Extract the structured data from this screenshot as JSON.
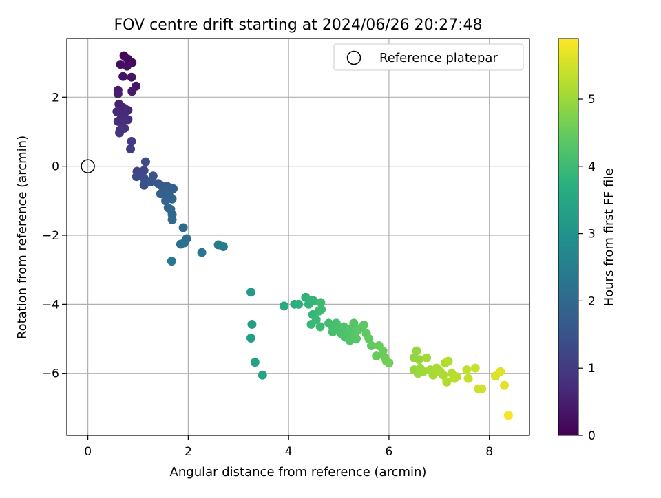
{
  "chart_data": {
    "type": "scatter",
    "title": "FOV centre drift starting at 2024/06/26 20:27:48",
    "xlabel": "Angular distance from reference (arcmin)",
    "ylabel": "Rotation from reference (arcmin)",
    "xlim": [
      -0.42,
      8.8
    ],
    "ylim": [
      -7.8,
      3.7
    ],
    "x_ticks": [
      0,
      2,
      4,
      6,
      8
    ],
    "y_ticks": [
      -6,
      -4,
      -2,
      0,
      2
    ],
    "x_tick_labels": [
      "0",
      "2",
      "4",
      "6",
      "8"
    ],
    "y_tick_labels": [
      "−6",
      "−4",
      "−2",
      "0",
      "2"
    ],
    "grid": true,
    "legend": {
      "position": "top-right",
      "entries": [
        "Reference platepar"
      ]
    },
    "reference_point": {
      "x": 0,
      "y": 0
    },
    "colorbar": {
      "label": "Hours from first FF file",
      "colormap": "viridis",
      "range": [
        0,
        5.9
      ],
      "ticks": [
        0,
        1,
        2,
        3,
        4,
        5
      ],
      "tick_labels": [
        "0",
        "1",
        "2",
        "3",
        "4",
        "5"
      ]
    },
    "points": [
      [
        0.72,
        3.2,
        0.05
      ],
      [
        0.8,
        3.1,
        0.1
      ],
      [
        0.88,
        3.0,
        0.15
      ],
      [
        0.65,
        2.95,
        0.2
      ],
      [
        0.78,
        2.9,
        0.25
      ],
      [
        0.7,
        2.6,
        0.3
      ],
      [
        0.87,
        2.58,
        0.32
      ],
      [
        0.96,
        2.32,
        0.35
      ],
      [
        0.88,
        2.17,
        0.4
      ],
      [
        0.6,
        2.2,
        0.45
      ],
      [
        0.6,
        2.1,
        0.5
      ],
      [
        0.62,
        1.8,
        0.55
      ],
      [
        0.7,
        1.7,
        0.6
      ],
      [
        0.75,
        1.65,
        0.62
      ],
      [
        0.8,
        1.62,
        0.65
      ],
      [
        0.58,
        1.58,
        0.68
      ],
      [
        0.66,
        1.5,
        0.7
      ],
      [
        0.72,
        1.45,
        0.72
      ],
      [
        0.8,
        1.35,
        0.75
      ],
      [
        0.6,
        1.3,
        0.78
      ],
      [
        0.68,
        1.25,
        0.8
      ],
      [
        0.73,
        1.1,
        0.85
      ],
      [
        0.64,
        1.05,
        0.88
      ],
      [
        0.63,
        0.97,
        0.9
      ],
      [
        0.87,
        0.72,
        1.0
      ],
      [
        0.85,
        0.5,
        1.05
      ],
      [
        0.98,
        -0.15,
        1.2
      ],
      [
        1.05,
        -0.2,
        1.25
      ],
      [
        1.12,
        -0.12,
        1.28
      ],
      [
        0.97,
        -0.3,
        1.3
      ],
      [
        1.15,
        0.13,
        1.35
      ],
      [
        1.12,
        -0.35,
        1.4
      ],
      [
        1.12,
        -0.55,
        1.45
      ],
      [
        1.3,
        -0.28,
        1.5
      ],
      [
        1.25,
        -0.45,
        1.55
      ],
      [
        1.4,
        -0.5,
        1.6
      ],
      [
        1.45,
        -0.55,
        1.65
      ],
      [
        1.52,
        -0.6,
        1.7
      ],
      [
        1.58,
        -0.58,
        1.72
      ],
      [
        1.63,
        -0.63,
        1.75
      ],
      [
        1.7,
        -0.65,
        1.78
      ],
      [
        1.45,
        -0.8,
        1.8
      ],
      [
        1.55,
        -0.78,
        1.82
      ],
      [
        1.62,
        -0.85,
        1.85
      ],
      [
        1.68,
        -0.95,
        1.88
      ],
      [
        1.55,
        -1.0,
        1.9
      ],
      [
        1.6,
        -1.2,
        1.92
      ],
      [
        1.65,
        -1.25,
        1.95
      ],
      [
        1.68,
        -1.4,
        1.98
      ],
      [
        1.68,
        -1.55,
        2.0
      ],
      [
        1.9,
        -1.78,
        2.05
      ],
      [
        1.97,
        -2.1,
        2.1
      ],
      [
        1.92,
        -2.22,
        2.15
      ],
      [
        1.85,
        -2.26,
        2.2
      ],
      [
        2.27,
        -2.5,
        2.3
      ],
      [
        1.67,
        -2.75,
        2.35
      ],
      [
        2.6,
        -2.28,
        2.4
      ],
      [
        2.7,
        -2.33,
        2.45
      ],
      [
        3.25,
        -3.65,
        3.2
      ],
      [
        3.27,
        -4.58,
        3.25
      ],
      [
        3.25,
        -4.98,
        3.3
      ],
      [
        3.33,
        -5.68,
        3.35
      ],
      [
        3.48,
        -6.05,
        3.4
      ],
      [
        3.91,
        -4.05,
        3.6
      ],
      [
        4.12,
        -4.0,
        3.7
      ],
      [
        4.2,
        -4.0,
        3.75
      ],
      [
        4.34,
        -3.8,
        3.8
      ],
      [
        4.4,
        -4.0,
        3.82
      ],
      [
        4.46,
        -3.88,
        3.85
      ],
      [
        4.5,
        -3.9,
        3.88
      ],
      [
        4.48,
        -4.3,
        3.9
      ],
      [
        4.45,
        -4.58,
        3.92
      ],
      [
        4.55,
        -4.45,
        3.95
      ],
      [
        4.6,
        -4.2,
        3.97
      ],
      [
        4.63,
        -4.65,
        3.99
      ],
      [
        4.65,
        -4.15,
        4.0
      ],
      [
        4.64,
        -3.95,
        4.02
      ],
      [
        4.8,
        -4.55,
        4.05
      ],
      [
        4.85,
        -4.6,
        4.08
      ],
      [
        4.9,
        -4.75,
        4.1
      ],
      [
        4.95,
        -4.55,
        4.12
      ],
      [
        4.88,
        -4.8,
        4.14
      ],
      [
        5.0,
        -4.7,
        4.16
      ],
      [
        5.05,
        -4.85,
        4.18
      ],
      [
        5.1,
        -4.65,
        4.2
      ],
      [
        5.12,
        -4.95,
        4.22
      ],
      [
        5.18,
        -4.8,
        4.24
      ],
      [
        5.22,
        -5.05,
        4.26
      ],
      [
        5.25,
        -4.7,
        4.28
      ],
      [
        5.3,
        -4.55,
        4.3
      ],
      [
        5.32,
        -4.9,
        4.32
      ],
      [
        5.35,
        -5.0,
        4.34
      ],
      [
        5.38,
        -4.75,
        4.36
      ],
      [
        5.45,
        -4.68,
        4.38
      ],
      [
        5.5,
        -4.6,
        4.4
      ],
      [
        5.55,
        -4.85,
        4.42
      ],
      [
        5.6,
        -5.0,
        4.44
      ],
      [
        5.65,
        -5.2,
        4.46
      ],
      [
        5.75,
        -5.5,
        4.5
      ],
      [
        5.8,
        -5.2,
        4.52
      ],
      [
        5.88,
        -5.35,
        4.54
      ],
      [
        5.92,
        -5.55,
        4.56
      ],
      [
        5.95,
        -5.65,
        4.58
      ],
      [
        6.0,
        -5.7,
        4.6
      ],
      [
        6.5,
        -5.55,
        4.9
      ],
      [
        6.55,
        -5.35,
        4.92
      ],
      [
        6.6,
        -5.6,
        4.94
      ],
      [
        6.5,
        -5.9,
        4.96
      ],
      [
        6.58,
        -6.0,
        4.98
      ],
      [
        6.62,
        -5.85,
        5.0
      ],
      [
        6.68,
        -5.95,
        5.02
      ],
      [
        6.75,
        -5.55,
        5.05
      ],
      [
        6.82,
        -5.9,
        5.08
      ],
      [
        6.88,
        -6.05,
        5.1
      ],
      [
        6.95,
        -5.85,
        5.12
      ],
      [
        7.02,
        -5.95,
        5.14
      ],
      [
        7.08,
        -6.05,
        5.16
      ],
      [
        7.12,
        -5.7,
        5.18
      ],
      [
        7.15,
        -6.25,
        5.2
      ],
      [
        7.18,
        -5.65,
        5.22
      ],
      [
        7.25,
        -6.0,
        5.24
      ],
      [
        7.3,
        -6.15,
        5.26
      ],
      [
        7.35,
        -6.1,
        5.28
      ],
      [
        7.55,
        -5.9,
        5.35
      ],
      [
        7.58,
        -6.15,
        5.38
      ],
      [
        7.72,
        -5.85,
        5.42
      ],
      [
        7.78,
        -6.45,
        5.45
      ],
      [
        7.85,
        -6.45,
        5.48
      ],
      [
        8.12,
        -6.08,
        5.55
      ],
      [
        8.22,
        -5.95,
        5.6
      ],
      [
        8.3,
        -6.35,
        5.65
      ],
      [
        8.38,
        -7.22,
        5.85
      ]
    ]
  }
}
